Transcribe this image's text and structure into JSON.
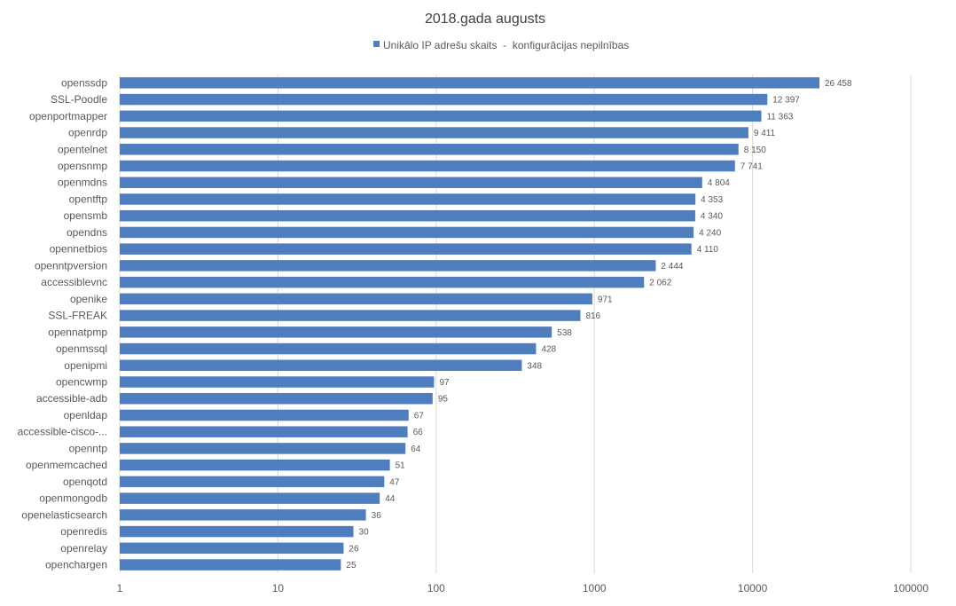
{
  "chart_data": {
    "type": "bar",
    "orientation": "horizontal",
    "title": "2018.gada augusts",
    "xscale": "log",
    "xlim": [
      1,
      100000
    ],
    "xticks": [
      "1",
      "10",
      "100",
      "1000",
      "10000",
      "100000"
    ],
    "grid": true,
    "legend_position": "top",
    "bar_color": "#4f7ebf",
    "categories": [
      "openssdp",
      "SSL-Poodle",
      "openportmapper",
      "openrdp",
      "opentelnet",
      "opensnmp",
      "openmdns",
      "opentftp",
      "opensmb",
      "opendns",
      "opennetbios",
      "openntpversion",
      "accessiblevnc",
      "openike",
      "SSL-FREAK",
      "opennatpmp",
      "openmssql",
      "openipmi",
      "opencwmp",
      "accessible-adb",
      "openldap",
      "accessible-cisco-...",
      "openntp",
      "openmemcached",
      "openqotd",
      "openmongodb",
      "openelasticsearch",
      "openredis",
      "openrelay",
      "openchargen"
    ],
    "series": [
      {
        "name": "Unikālo IP adrešu skaits  -  konfigurācijas nepilnības",
        "values": [
          26458,
          12397,
          11363,
          9411,
          8150,
          7741,
          4804,
          4353,
          4340,
          4240,
          4110,
          2444,
          2062,
          971,
          816,
          538,
          428,
          348,
          97,
          95,
          67,
          66,
          64,
          51,
          47,
          44,
          36,
          30,
          26,
          25
        ],
        "labels": [
          "26 458",
          "12 397",
          "11 363",
          "9 411",
          "8 150",
          "7 741",
          "4 804",
          "4 353",
          "4 340",
          "4 240",
          "4 110",
          "2 444",
          "2 062",
          "971",
          "816",
          "538",
          "428",
          "348",
          "97",
          "95",
          "67",
          "66",
          "64",
          "51",
          "47",
          "44",
          "36",
          "30",
          "26",
          "25"
        ]
      }
    ]
  }
}
